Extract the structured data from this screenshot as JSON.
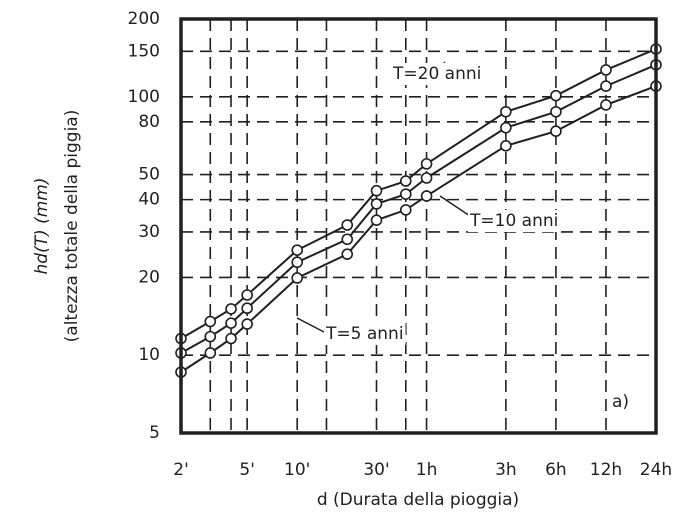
{
  "chart_data": {
    "type": "line",
    "x_label": "d  (Durata della pioggia)",
    "y_label": "hd(T) (mm)",
    "y_label_2": "(altezza totale della piggia)",
    "panel_label": "a)",
    "x_scale": "log",
    "y_scale": "log",
    "grid": true,
    "x": [
      2,
      3,
      4,
      5,
      10,
      20,
      30,
      45,
      60,
      180,
      360,
      720,
      1440
    ],
    "xlim": [
      2,
      1440
    ],
    "xticks": [
      {
        "value": 2,
        "label": "2'"
      },
      {
        "value": 5,
        "label": "5'"
      },
      {
        "value": 10,
        "label": "10'"
      },
      {
        "value": 30,
        "label": "30'"
      },
      {
        "value": 60,
        "label": "1h"
      },
      {
        "value": 180,
        "label": "3h"
      },
      {
        "value": 360,
        "label": "6h"
      },
      {
        "value": 720,
        "label": "12h"
      },
      {
        "value": 1440,
        "label": "24h"
      }
    ],
    "x_minor_gridlines": [
      3,
      4,
      15,
      45
    ],
    "ylim": [
      5,
      200
    ],
    "yticks": [
      5,
      10,
      20,
      30,
      40,
      50,
      80,
      100,
      150,
      200
    ],
    "series": [
      {
        "name": "T=20 anni",
        "color": "#231f20",
        "values": [
          11.6,
          13.5,
          15.1,
          17.1,
          25.5,
          31.9,
          43.3,
          47.2,
          55,
          87.5,
          101,
          127,
          153
        ]
      },
      {
        "name": "T=10 anni",
        "color": "#231f20",
        "values": [
          10.2,
          11.8,
          13.3,
          15.2,
          22.9,
          28.1,
          38.5,
          42,
          48.5,
          75.9,
          87.5,
          110,
          133
        ]
      },
      {
        "name": "T=5 anni",
        "color": "#231f20",
        "values": [
          8.6,
          10.2,
          11.6,
          13.2,
          19.9,
          24.6,
          33.3,
          36.5,
          41.3,
          64.6,
          73.6,
          93,
          110
        ]
      }
    ]
  }
}
